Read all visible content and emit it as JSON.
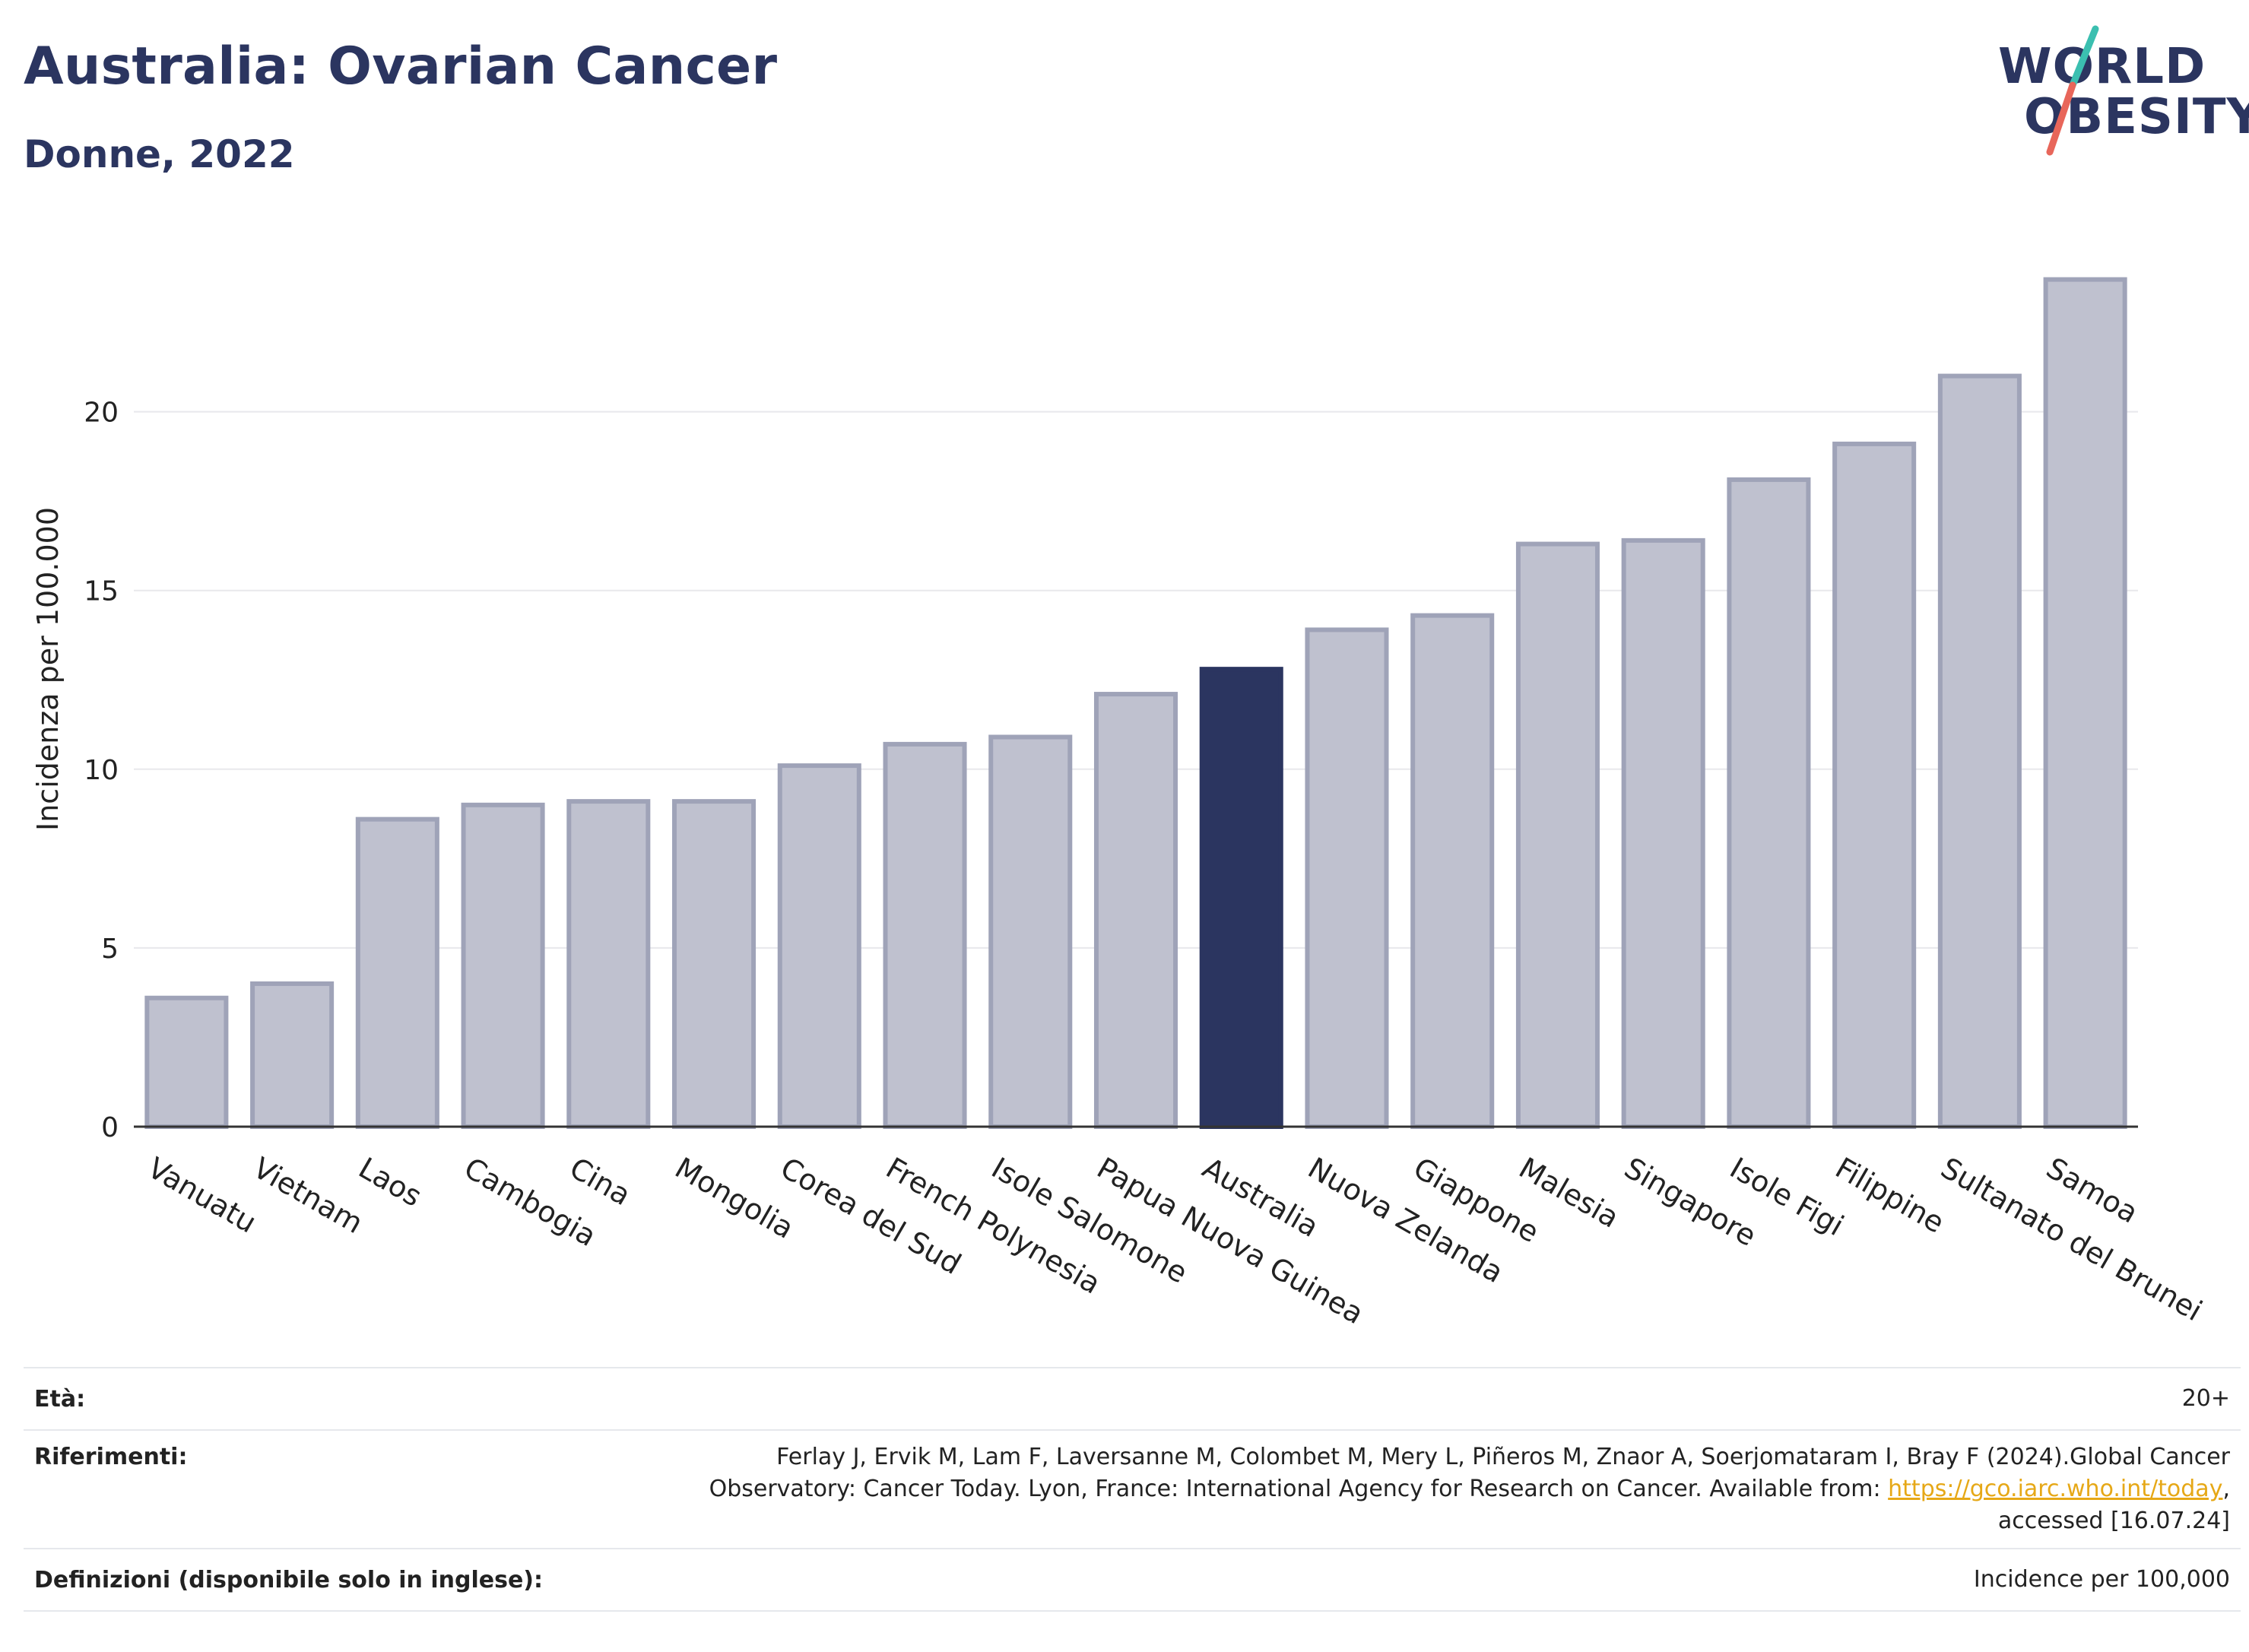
{
  "header": {
    "title": "Australia: Ovarian Cancer",
    "subtitle": "Donne, 2022"
  },
  "logo": {
    "line1": "WORLD",
    "line2": "OBESITY",
    "colors": {
      "text": "#2b3560",
      "slash_top": "#3bbfb0",
      "slash_bottom": "#e8665a"
    }
  },
  "chart_data": {
    "type": "bar",
    "ylabel": "Incidenza per 100.000",
    "xlabel": "",
    "ylim": [
      0,
      24.5
    ],
    "yticks": [
      0,
      5,
      10,
      15,
      20
    ],
    "grid": true,
    "highlight": "Australia",
    "colors": {
      "bar": "#bfc1cf",
      "bar_edge": "#9fa3b8",
      "highlight": "#2b3560",
      "grid": "#e8e8ec"
    },
    "categories": [
      "Vanuatu",
      "Vietnam",
      "Laos",
      "Cambogia",
      "Cina",
      "Mongolia",
      "Corea del Sud",
      "French Polynesia",
      "Isole Salomone",
      "Papua Nuova Guinea",
      "Australia",
      "Nuova Zelanda",
      "Giappone",
      "Malesia",
      "Singapore",
      "Isole Figi",
      "Filippine",
      "Sultanato del Brunei",
      "Samoa"
    ],
    "values": [
      3.6,
      4.0,
      8.6,
      9.0,
      9.1,
      9.1,
      10.1,
      10.7,
      10.9,
      12.1,
      12.8,
      13.9,
      14.3,
      16.3,
      16.4,
      18.1,
      19.1,
      21.0,
      23.7
    ]
  },
  "footer": {
    "age_label": "Età:",
    "age_value": "20+",
    "refs_label": "Riferimenti:",
    "refs_line1": "Ferlay J, Ervik M, Lam F, Laversanne M, Colombet M, Mery L, Piñeros M, Znaor A, Soerjomataram I, Bray F (2024).Global Cancer",
    "refs_line2_pre": "Observatory: Cancer Today. Lyon, France: International Agency for Research on Cancer. Available from: ",
    "refs_link": "https://gco.iarc.who.int/today",
    "refs_line2_post": ",",
    "refs_line3": "accessed [16.07.24]",
    "defs_label": "Definizioni (disponibile solo in inglese):",
    "defs_value": "Incidence per 100,000"
  }
}
